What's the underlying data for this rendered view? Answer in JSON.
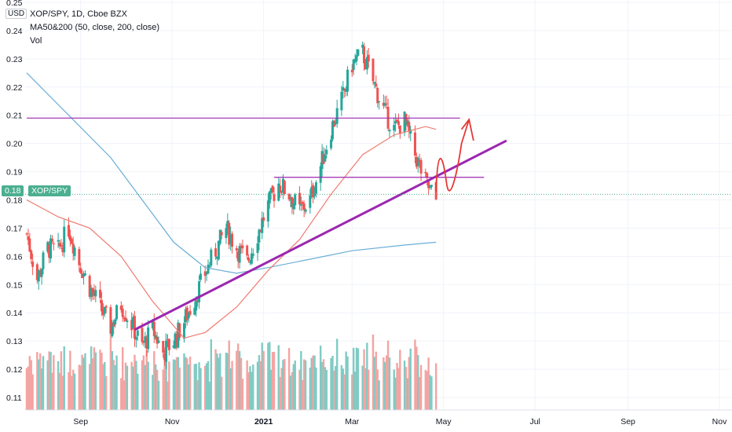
{
  "header": {
    "title": "XOP/SPY, 1D, Cboe BZX",
    "indicator": "MA50&200 (50, close, 200, close)",
    "volume": "Vol",
    "currency": "USD"
  },
  "badges": {
    "last_price": "0.18",
    "symbol": "XOP/SPY"
  },
  "colors": {
    "up": "#26a69a",
    "down": "#ef5350",
    "volume_up": "#80cbc4",
    "volume_down": "#f4a4a2",
    "ma50": "#f07b70",
    "ma200": "#6aaed6",
    "drawing_purple": "#9c27b0",
    "drawing_red": "#e53935",
    "last_price_line": "#4caf8f"
  },
  "chart_data": {
    "type": "candlestick",
    "y_axis": {
      "min": 0.1,
      "max": 0.25,
      "ticks": [
        "0.11",
        "0.12",
        "0.13",
        "0.14",
        "0.15",
        "0.16",
        "0.17",
        "0.18",
        "0.19",
        "0.20",
        "0.21",
        "0.22",
        "0.23",
        "0.24",
        "0.25"
      ]
    },
    "x_axis": {
      "labels": [
        "Sep",
        "Nov",
        "2021",
        "Mar",
        "May",
        "Jul",
        "Sep",
        "Nov"
      ]
    },
    "price_path": [
      [
        "2020-07-27",
        0.168
      ],
      [
        "2020-08-03",
        0.152
      ],
      [
        "2020-08-10",
        0.163
      ],
      [
        "2020-08-17",
        0.162
      ],
      [
        "2020-08-24",
        0.17
      ],
      [
        "2020-08-31",
        0.158
      ],
      [
        "2020-09-07",
        0.149
      ],
      [
        "2020-09-14",
        0.142
      ],
      [
        "2020-09-21",
        0.135
      ],
      [
        "2020-09-28",
        0.143
      ],
      [
        "2020-10-05",
        0.136
      ],
      [
        "2020-10-12",
        0.128
      ],
      [
        "2020-10-19",
        0.134
      ],
      [
        "2020-10-26",
        0.126
      ],
      [
        "2020-11-02",
        0.13
      ],
      [
        "2020-11-09",
        0.137
      ],
      [
        "2020-11-16",
        0.145
      ],
      [
        "2020-11-23",
        0.154
      ],
      [
        "2020-11-30",
        0.162
      ],
      [
        "2020-12-07",
        0.17
      ],
      [
        "2020-12-14",
        0.163
      ],
      [
        "2020-12-21",
        0.158
      ],
      [
        "2020-12-28",
        0.168
      ],
      [
        "2021-01-04",
        0.178
      ],
      [
        "2021-01-11",
        0.186
      ],
      [
        "2021-01-18",
        0.182
      ],
      [
        "2021-01-25",
        0.176
      ],
      [
        "2021-02-01",
        0.18
      ],
      [
        "2021-02-08",
        0.192
      ],
      [
        "2021-02-15",
        0.205
      ],
      [
        "2021-02-22",
        0.215
      ],
      [
        "2021-03-01",
        0.228
      ],
      [
        "2021-03-08",
        0.232
      ],
      [
        "2021-03-15",
        0.222
      ],
      [
        "2021-03-22",
        0.212
      ],
      [
        "2021-03-29",
        0.205
      ],
      [
        "2021-04-05",
        0.208
      ],
      [
        "2021-04-12",
        0.196
      ],
      [
        "2021-04-19",
        0.186
      ],
      [
        "2021-04-26",
        0.18
      ]
    ],
    "ma50": [
      [
        "2020-07-27",
        0.18
      ],
      [
        "2020-08-17",
        0.174
      ],
      [
        "2020-09-07",
        0.17
      ],
      [
        "2020-09-28",
        0.16
      ],
      [
        "2020-10-19",
        0.144
      ],
      [
        "2020-11-09",
        0.131
      ],
      [
        "2020-11-23",
        0.133
      ],
      [
        "2020-12-14",
        0.142
      ],
      [
        "2021-01-04",
        0.155
      ],
      [
        "2021-01-25",
        0.166
      ],
      [
        "2021-02-15",
        0.182
      ],
      [
        "2021-03-08",
        0.196
      ],
      [
        "2021-03-29",
        0.203
      ],
      [
        "2021-04-19",
        0.206
      ],
      [
        "2021-04-26",
        0.205
      ]
    ],
    "ma200": [
      [
        "2020-07-27",
        0.225
      ],
      [
        "2020-08-24",
        0.21
      ],
      [
        "2020-09-21",
        0.195
      ],
      [
        "2020-10-12",
        0.18
      ],
      [
        "2020-11-02",
        0.165
      ],
      [
        "2020-11-23",
        0.156
      ],
      [
        "2020-12-14",
        0.154
      ],
      [
        "2021-01-04",
        0.156
      ],
      [
        "2021-02-01",
        0.159
      ],
      [
        "2021-03-01",
        0.162
      ],
      [
        "2021-04-05",
        0.164
      ],
      [
        "2021-04-26",
        0.165
      ]
    ],
    "horizontal_lines": [
      {
        "y": 0.209,
        "from": "2020-07-27",
        "to": "2021-05-12"
      },
      {
        "y": 0.188,
        "from": "2021-01-08",
        "to": "2021-05-28"
      }
    ],
    "trendline": {
      "from": [
        "2020-10-07",
        0.134
      ],
      "to": [
        "2021-06-12",
        0.201
      ]
    },
    "last_price": 0.182
  }
}
